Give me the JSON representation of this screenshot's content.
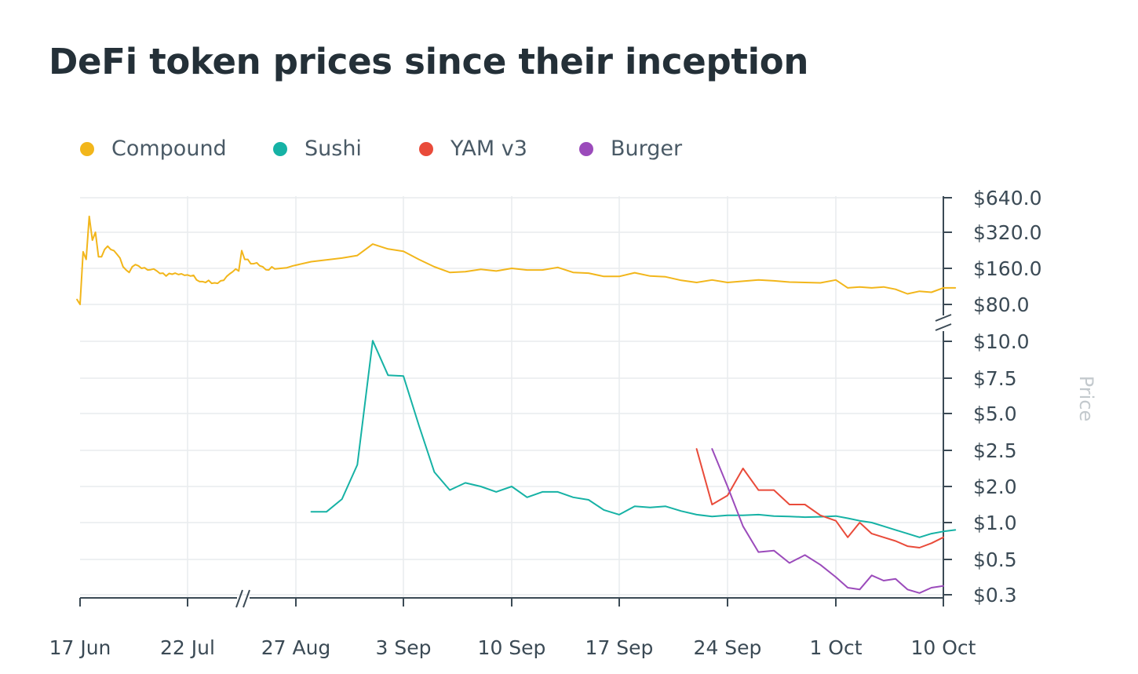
{
  "chart_data": {
    "type": "line",
    "title": "DeFi token prices since their inception",
    "ylabel": "Price",
    "xlabel": "",
    "y_scale": "log, broken axis between $10.0 and $80.0",
    "x_scale": "broken axis between 22 Jul and 27 Aug",
    "legend_position": "top-left",
    "grid": true,
    "x_ticks": [
      "17 Jun",
      "22 Jul",
      "27 Aug",
      "3 Sep",
      "10 Sep",
      "17 Sep",
      "24 Sep",
      "1 Oct",
      "10 Oct"
    ],
    "y_ticks": [
      "$0.3",
      "$0.5",
      "$1.0",
      "$2.0",
      "$2.5",
      "$5.0",
      "$7.5",
      "$10.0",
      "$80.0",
      "$160.0",
      "$320.0",
      "$640.0"
    ],
    "series": [
      {
        "name": "Compound",
        "color": "#f2b61b",
        "points": [
          [
            "2020-06-16",
            88
          ],
          [
            "2020-06-17",
            80
          ],
          [
            "2020-06-18",
            220
          ],
          [
            "2020-06-19",
            190
          ],
          [
            "2020-06-20",
            440
          ],
          [
            "2020-06-21",
            275
          ],
          [
            "2020-06-22",
            320
          ],
          [
            "2020-06-23",
            200
          ],
          [
            "2020-06-24",
            200
          ],
          [
            "2020-06-25",
            230
          ],
          [
            "2020-06-26",
            245
          ],
          [
            "2020-06-27",
            230
          ],
          [
            "2020-06-28",
            225
          ],
          [
            "2020-06-29",
            210
          ],
          [
            "2020-06-30",
            195
          ],
          [
            "2020-07-01",
            165
          ],
          [
            "2020-07-02",
            155
          ],
          [
            "2020-07-03",
            148
          ],
          [
            "2020-07-04",
            165
          ],
          [
            "2020-07-05",
            172
          ],
          [
            "2020-07-06",
            168
          ],
          [
            "2020-07-07",
            160
          ],
          [
            "2020-07-08",
            162
          ],
          [
            "2020-07-09",
            155
          ],
          [
            "2020-07-10",
            156
          ],
          [
            "2020-07-11",
            158
          ],
          [
            "2020-07-12",
            152
          ],
          [
            "2020-07-13",
            145
          ],
          [
            "2020-07-14",
            146
          ],
          [
            "2020-07-15",
            138
          ],
          [
            "2020-07-16",
            145
          ],
          [
            "2020-07-17",
            143
          ],
          [
            "2020-07-18",
            146
          ],
          [
            "2020-07-19",
            142
          ],
          [
            "2020-07-20",
            144
          ],
          [
            "2020-07-21",
            140
          ],
          [
            "2020-07-22",
            141
          ],
          [
            "2020-07-23",
            138
          ],
          [
            "2020-07-24",
            140
          ],
          [
            "2020-07-25",
            128
          ],
          [
            "2020-07-26",
            124
          ],
          [
            "2020-07-27",
            124
          ],
          [
            "2020-07-28",
            122
          ],
          [
            "2020-07-29",
            127
          ],
          [
            "2020-07-30",
            120
          ],
          [
            "2020-07-31",
            121
          ],
          [
            "2020-08-01",
            120
          ],
          [
            "2020-08-02",
            126
          ],
          [
            "2020-08-03",
            127
          ],
          [
            "2020-08-04",
            137
          ],
          [
            "2020-08-05",
            144
          ],
          [
            "2020-08-06",
            150
          ],
          [
            "2020-08-07",
            158
          ],
          [
            "2020-08-08",
            152
          ],
          [
            "2020-08-09",
            225
          ],
          [
            "2020-08-10",
            190
          ],
          [
            "2020-08-11",
            190
          ],
          [
            "2020-08-12",
            175
          ],
          [
            "2020-08-13",
            175
          ],
          [
            "2020-08-14",
            178
          ],
          [
            "2020-08-15",
            168
          ],
          [
            "2020-08-16",
            165
          ],
          [
            "2020-08-17",
            156
          ],
          [
            "2020-08-18",
            155
          ],
          [
            "2020-08-19",
            165
          ],
          [
            "2020-08-20",
            158
          ],
          [
            "2020-08-22",
            160
          ],
          [
            "2020-08-24",
            162
          ],
          [
            "2020-08-26",
            168
          ],
          [
            "2020-08-28",
            182
          ],
          [
            "2020-08-30",
            195
          ],
          [
            "2020-08-31",
            205
          ],
          [
            "2020-09-01",
            255
          ],
          [
            "2020-09-02",
            232
          ],
          [
            "2020-09-03",
            222
          ],
          [
            "2020-09-04",
            190
          ],
          [
            "2020-09-05",
            165
          ],
          [
            "2020-09-06",
            148
          ],
          [
            "2020-09-07",
            150
          ],
          [
            "2020-09-08",
            157
          ],
          [
            "2020-09-09",
            152
          ],
          [
            "2020-09-10",
            160
          ],
          [
            "2020-09-11",
            155
          ],
          [
            "2020-09-12",
            155
          ],
          [
            "2020-09-13",
            163
          ],
          [
            "2020-09-14",
            148
          ],
          [
            "2020-09-15",
            146
          ],
          [
            "2020-09-16",
            137
          ],
          [
            "2020-09-17",
            137
          ],
          [
            "2020-09-18",
            147
          ],
          [
            "2020-09-19",
            138
          ],
          [
            "2020-09-20",
            136
          ],
          [
            "2020-09-21",
            127
          ],
          [
            "2020-09-22",
            122
          ],
          [
            "2020-09-23",
            128
          ],
          [
            "2020-09-24",
            122
          ],
          [
            "2020-09-25",
            125
          ],
          [
            "2020-09-26",
            128
          ],
          [
            "2020-09-27",
            126
          ],
          [
            "2020-09-28",
            123
          ],
          [
            "2020-09-29",
            122
          ],
          [
            "2020-09-30",
            121
          ],
          [
            "2020-10-01",
            128
          ],
          [
            "2020-10-02",
            110
          ],
          [
            "2020-10-03",
            112
          ],
          [
            "2020-10-04",
            110
          ],
          [
            "2020-10-05",
            112
          ],
          [
            "2020-10-06",
            107
          ],
          [
            "2020-10-07",
            98
          ],
          [
            "2020-10-08",
            103
          ],
          [
            "2020-10-09",
            101
          ],
          [
            "2020-10-10",
            110
          ],
          [
            "2020-10-11",
            110
          ]
        ]
      },
      {
        "name": "Sushi",
        "color": "#16b2a5",
        "points": [
          [
            "2020-08-28",
            1.3
          ],
          [
            "2020-08-29",
            1.3
          ],
          [
            "2020-08-30",
            1.65
          ],
          [
            "2020-08-31",
            2.3
          ],
          [
            "2020-09-01",
            11.2
          ],
          [
            "2020-09-02",
            7.7
          ],
          [
            "2020-09-03",
            7.65
          ],
          [
            "2020-09-04",
            4.2
          ],
          [
            "2020-09-05",
            2.2
          ],
          [
            "2020-09-06",
            1.9
          ],
          [
            "2020-09-07",
            2.05
          ],
          [
            "2020-09-08",
            2.0
          ],
          [
            "2020-09-09",
            1.85
          ],
          [
            "2020-09-10",
            2.0
          ],
          [
            "2020-09-11",
            1.7
          ],
          [
            "2020-09-12",
            1.85
          ],
          [
            "2020-09-13",
            1.85
          ],
          [
            "2020-09-14",
            1.7
          ],
          [
            "2020-09-15",
            1.63
          ],
          [
            "2020-09-16",
            1.35
          ],
          [
            "2020-09-17",
            1.22
          ],
          [
            "2020-09-18",
            1.45
          ],
          [
            "2020-09-19",
            1.42
          ],
          [
            "2020-09-20",
            1.45
          ],
          [
            "2020-09-21",
            1.32
          ],
          [
            "2020-09-22",
            1.22
          ],
          [
            "2020-09-23",
            1.17
          ],
          [
            "2020-09-24",
            1.2
          ],
          [
            "2020-09-25",
            1.2
          ],
          [
            "2020-09-26",
            1.22
          ],
          [
            "2020-09-27",
            1.18
          ],
          [
            "2020-09-28",
            1.17
          ],
          [
            "2020-09-29",
            1.15
          ],
          [
            "2020-09-30",
            1.16
          ],
          [
            "2020-10-01",
            1.18
          ],
          [
            "2020-10-02",
            1.12
          ],
          [
            "2020-10-03",
            1.05
          ],
          [
            "2020-10-04",
            1.0
          ],
          [
            "2020-10-05",
            0.95
          ],
          [
            "2020-10-06",
            0.9
          ],
          [
            "2020-10-07",
            0.85
          ],
          [
            "2020-10-08",
            0.8
          ],
          [
            "2020-10-09",
            0.85
          ],
          [
            "2020-10-10",
            0.88
          ],
          [
            "2020-10-11",
            0.9
          ]
        ]
      },
      {
        "name": "YAM v3",
        "color": "#e94b3a",
        "points": [
          [
            "2020-09-22",
            2.6
          ],
          [
            "2020-09-23",
            1.5
          ],
          [
            "2020-09-24",
            1.75
          ],
          [
            "2020-09-25",
            2.25
          ],
          [
            "2020-09-26",
            1.9
          ],
          [
            "2020-09-27",
            1.9
          ],
          [
            "2020-09-28",
            1.5
          ],
          [
            "2020-09-29",
            1.5
          ],
          [
            "2020-09-30",
            1.2
          ],
          [
            "2020-10-01",
            1.05
          ],
          [
            "2020-10-02",
            0.8
          ],
          [
            "2020-10-03",
            1.0
          ],
          [
            "2020-10-04",
            0.85
          ],
          [
            "2020-10-05",
            0.8
          ],
          [
            "2020-10-06",
            0.75
          ],
          [
            "2020-10-07",
            0.68
          ],
          [
            "2020-10-08",
            0.66
          ],
          [
            "2020-10-09",
            0.72
          ],
          [
            "2020-10-10",
            0.8
          ]
        ]
      },
      {
        "name": "Burger",
        "color": "#9b4bbb",
        "points": [
          [
            "2020-09-23",
            2.6
          ],
          [
            "2020-09-24",
            2.0
          ],
          [
            "2020-09-25",
            0.95
          ],
          [
            "2020-09-26",
            0.6
          ],
          [
            "2020-09-27",
            0.62
          ],
          [
            "2020-09-28",
            0.48
          ],
          [
            "2020-09-29",
            0.56
          ],
          [
            "2020-09-30",
            0.47
          ],
          [
            "2020-10-01",
            0.4
          ],
          [
            "2020-10-02",
            0.34
          ],
          [
            "2020-10-03",
            0.33
          ],
          [
            "2020-10-04",
            0.41
          ],
          [
            "2020-10-05",
            0.38
          ],
          [
            "2020-10-06",
            0.39
          ],
          [
            "2020-10-07",
            0.33
          ],
          [
            "2020-10-08",
            0.31
          ],
          [
            "2020-10-09",
            0.34
          ],
          [
            "2020-10-10",
            0.35
          ]
        ]
      }
    ]
  }
}
